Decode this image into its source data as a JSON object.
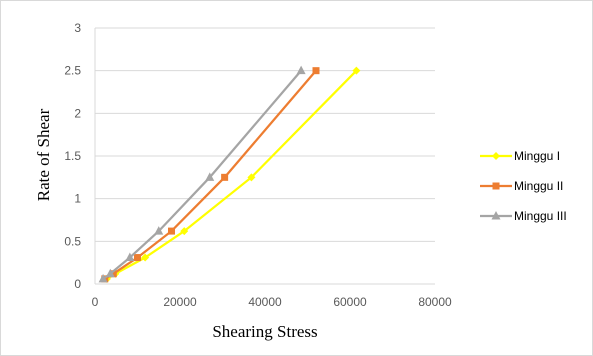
{
  "chart_data": {
    "type": "line",
    "title": "",
    "xlabel": "Shearing Stress",
    "ylabel": "Rate of Shear",
    "xlim": [
      0,
      80000
    ],
    "ylim": [
      0,
      3
    ],
    "x_ticks": [
      0,
      20000,
      40000,
      60000,
      80000
    ],
    "y_ticks": [
      0,
      0.5,
      1,
      1.5,
      2,
      2.5,
      3
    ],
    "x_tick_labels": [
      "0",
      "20000",
      "40000",
      "60000",
      "80000"
    ],
    "y_tick_labels": [
      "0",
      "0.5",
      "1",
      "1.5",
      "2",
      "2.5",
      "3"
    ],
    "grid": "horizontal",
    "legend": "right",
    "y": [
      0.06,
      0.12,
      0.31,
      0.62,
      1.25,
      2.5
    ],
    "series": [
      {
        "name": "Minggu I",
        "color": "#ffff00",
        "marker": "diamond",
        "x": [
          2800,
          4800,
          11800,
          21000,
          36800,
          61500
        ]
      },
      {
        "name": "Minggu II",
        "color": "#ed7d31",
        "marker": "square",
        "x": [
          2300,
          4300,
          10000,
          18000,
          30500,
          52000
        ]
      },
      {
        "name": "Minggu III",
        "color": "#a5a5a5",
        "marker": "triangle",
        "x": [
          1900,
          3600,
          8200,
          15000,
          27000,
          48500
        ]
      }
    ]
  }
}
